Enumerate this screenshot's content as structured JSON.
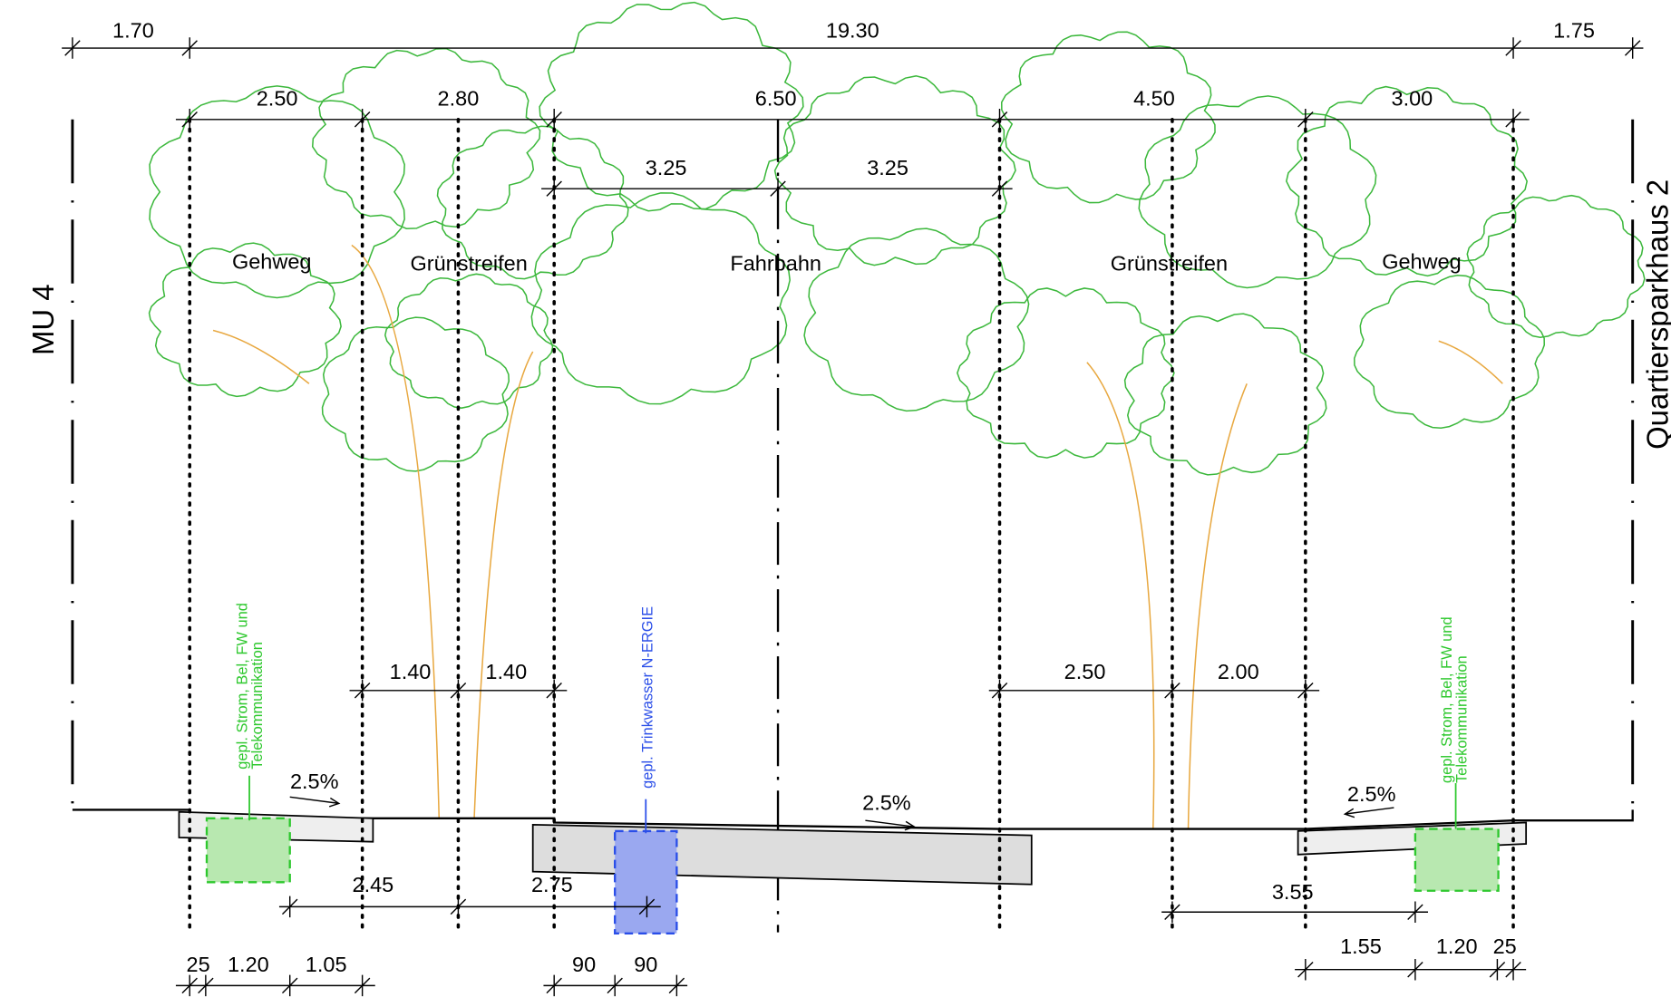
{
  "side_labels": {
    "left": "MU 4",
    "right": "Quartiersparkhaus 2"
  },
  "zones": [
    "Gehweg",
    "Grünstreifen",
    "Fahrbahn",
    "Grünstreifen",
    "Gehweg"
  ],
  "dimensions": {
    "overall": [
      "1.70",
      "19.30",
      "1.75"
    ],
    "sections": [
      "2.50",
      "2.80",
      "6.50",
      "4.50",
      "3.00"
    ],
    "lanes": [
      "3.25",
      "3.25"
    ],
    "trees": [
      "1.40",
      "1.40",
      "2.50",
      "2.00"
    ],
    "utility_offsets": [
      "2.45",
      "2.75",
      "3.55"
    ],
    "details": [
      "25",
      "1.20",
      "1.05",
      "90",
      "90",
      "1.55",
      "1.20",
      "25"
    ]
  },
  "slopes": [
    "2.5%",
    "2.5%",
    "2.5%"
  ],
  "utilities": [
    {
      "lines": [
        "gepl.  Strom, Bel, FW und",
        "Telekommunikation"
      ]
    },
    {
      "lines": [
        "gepl. Trinkwasser N-ERGIE"
      ]
    },
    {
      "lines": [
        "gepl.  Strom, Bel, FW und",
        "Telekommunikation"
      ]
    }
  ]
}
